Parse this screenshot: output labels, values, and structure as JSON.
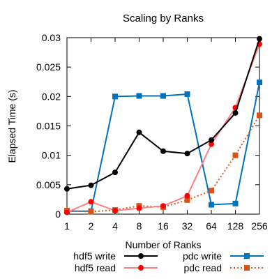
{
  "chart_data": {
    "type": "line",
    "title": "Scaling by Ranks",
    "xlabel": "Number of Ranks",
    "ylabel": "Elapsed Time (s)",
    "categories": [
      "1",
      "2",
      "4",
      "8",
      "16",
      "32",
      "64",
      "128",
      "256"
    ],
    "ylim": [
      0,
      0.03
    ],
    "yticks": [
      "0",
      "0.005",
      "0.01",
      "0.015",
      "0.02",
      "0.025",
      "0.03"
    ],
    "grid": false,
    "legend_position": "bottom",
    "series": [
      {
        "name": "hdf5 write",
        "color": "#000000",
        "marker": "circle",
        "line": "solid",
        "values": [
          0.0043,
          0.0049,
          0.0071,
          0.0139,
          0.0107,
          0.0103,
          0.0126,
          0.0172,
          0.0298
        ]
      },
      {
        "name": "hdf5 read",
        "color": "#ff0000",
        "line_color": "#ff8080",
        "marker": "circle",
        "line": "solid",
        "values": [
          0.0003,
          0.0021,
          0.0006,
          0.001,
          0.0014,
          0.0031,
          0.0119,
          0.0181,
          0.0289
        ]
      },
      {
        "name": "pdc write",
        "color": "#0072bd",
        "marker": "square",
        "line": "solid",
        "values": [
          0.0005,
          0.0005,
          0.02,
          0.0201,
          0.0201,
          0.0204,
          0.0016,
          0.0018,
          0.0224
        ]
      },
      {
        "name": "pdc read",
        "color": "#d95319",
        "marker": "square",
        "line": "dotted",
        "values": [
          0.0006,
          0.0004,
          0.0007,
          0.0014,
          0.0012,
          0.0024,
          0.004,
          0.01,
          0.0168
        ]
      }
    ]
  }
}
